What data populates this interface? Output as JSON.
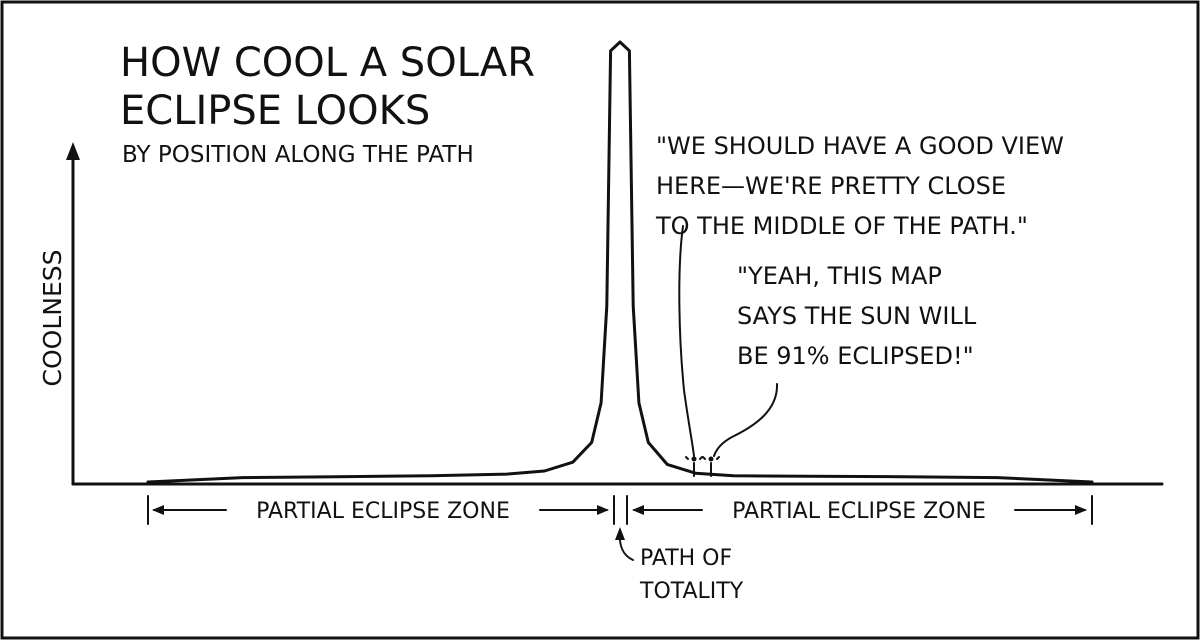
{
  "chart_data": {
    "type": "line",
    "title": "HOW COOL A SOLAR ECLIPSE LOOKS",
    "subtitle": "BY POSITION ALONG THE PATH",
    "ylabel": "COOLNESS",
    "xlabel": "",
    "series": [
      {
        "points": [
          [
            0.0,
            0.0
          ],
          [
            0.1,
            0.01
          ],
          [
            0.2,
            0.012
          ],
          [
            0.3,
            0.014
          ],
          [
            0.38,
            0.018
          ],
          [
            0.42,
            0.025
          ],
          [
            0.45,
            0.045
          ],
          [
            0.47,
            0.09
          ],
          [
            0.48,
            0.18
          ],
          [
            0.486,
            0.4
          ],
          [
            0.49,
            0.98
          ],
          [
            0.5,
            1.0
          ],
          [
            0.51,
            0.98
          ],
          [
            0.514,
            0.4
          ],
          [
            0.52,
            0.18
          ],
          [
            0.53,
            0.09
          ],
          [
            0.55,
            0.04
          ],
          [
            0.58,
            0.02
          ],
          [
            0.62,
            0.014
          ],
          [
            0.7,
            0.013
          ],
          [
            0.8,
            0.012
          ],
          [
            0.9,
            0.01
          ],
          [
            1.0,
            0.0
          ]
        ]
      }
    ],
    "annotations": {
      "left_zone": "PARTIAL ECLIPSE ZONE",
      "right_zone": "PARTIAL ECLIPSE ZONE",
      "path_of_totality": [
        "PATH OF",
        "TOTALITY"
      ]
    }
  },
  "speech": {
    "person_one": [
      "\"WE SHOULD HAVE A GOOD VIEW",
      "HERE—WE'RE PRETTY CLOSE",
      "TO THE MIDDLE OF THE PATH.\""
    ],
    "person_two": [
      "\"YEAH, THIS MAP",
      "SAYS THE SUN WILL",
      "BE 91% ECLIPSED!\""
    ]
  }
}
